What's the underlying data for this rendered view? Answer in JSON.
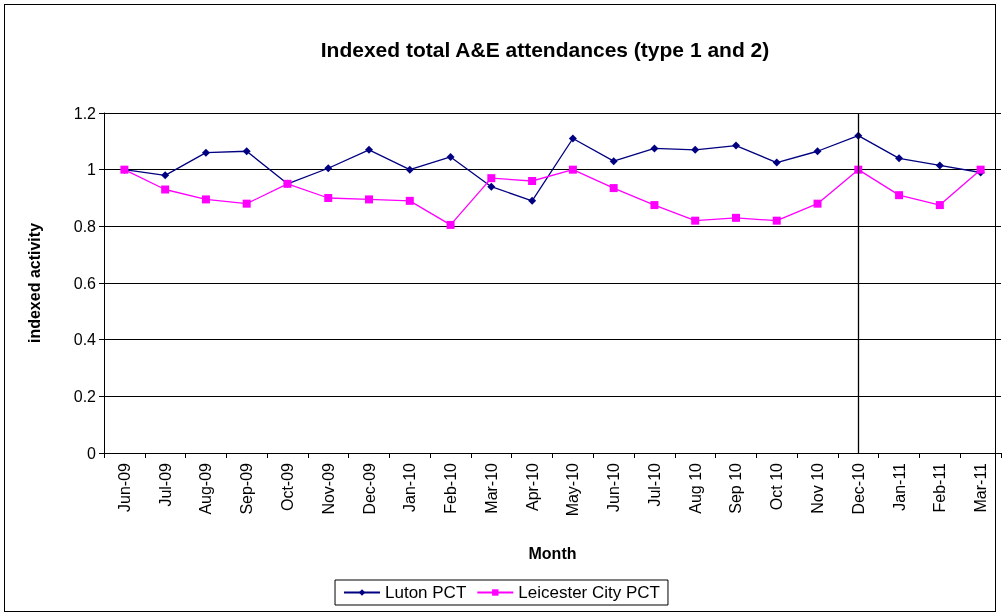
{
  "chart_data": {
    "type": "line",
    "title": "Indexed total A&E attendances (type 1 and 2)",
    "xlabel": "Month",
    "ylabel": "indexed activity",
    "categories": [
      "Jun-09",
      "Jul-09",
      "Aug-09",
      "Sep-09",
      "Oct-09",
      "Nov-09",
      "Dec-09",
      "Jan-10",
      "Feb-10",
      "Mar-10",
      "Apr-10",
      "May-10",
      "Jun-10",
      "Jul-10",
      "Aug 10",
      "Sep 10",
      "Oct 10",
      "Nov 10",
      "Dec-10",
      "Jan-11",
      "Feb-11",
      "Mar-11"
    ],
    "series": [
      {
        "name": "Luton PCT",
        "color": "#000080",
        "marker": "diamond",
        "values": [
          1.0,
          0.98,
          1.06,
          1.065,
          0.95,
          1.005,
          1.07,
          1.0,
          1.045,
          0.94,
          0.89,
          1.11,
          1.03,
          1.075,
          1.07,
          1.085,
          1.025,
          1.065,
          1.12,
          1.04,
          1.015,
          0.99
        ]
      },
      {
        "name": "Leicester City PCT",
        "color": "#ff00ff",
        "marker": "square",
        "values": [
          1.0,
          0.93,
          0.895,
          0.88,
          0.95,
          0.9,
          0.895,
          0.89,
          0.805,
          0.97,
          0.96,
          1.0,
          0.935,
          0.875,
          0.82,
          0.83,
          0.82,
          0.88,
          1.0,
          0.91,
          0.875,
          1.0
        ]
      }
    ],
    "ylim": [
      0,
      1.2
    ],
    "yticks": [
      0,
      0.2,
      0.4,
      0.6,
      0.8,
      1,
      1.2
    ],
    "grid": "y",
    "legend": "bottom",
    "ref_lines": [
      {
        "axis": "x",
        "value": "Dec-10",
        "color": "#000000"
      }
    ]
  }
}
